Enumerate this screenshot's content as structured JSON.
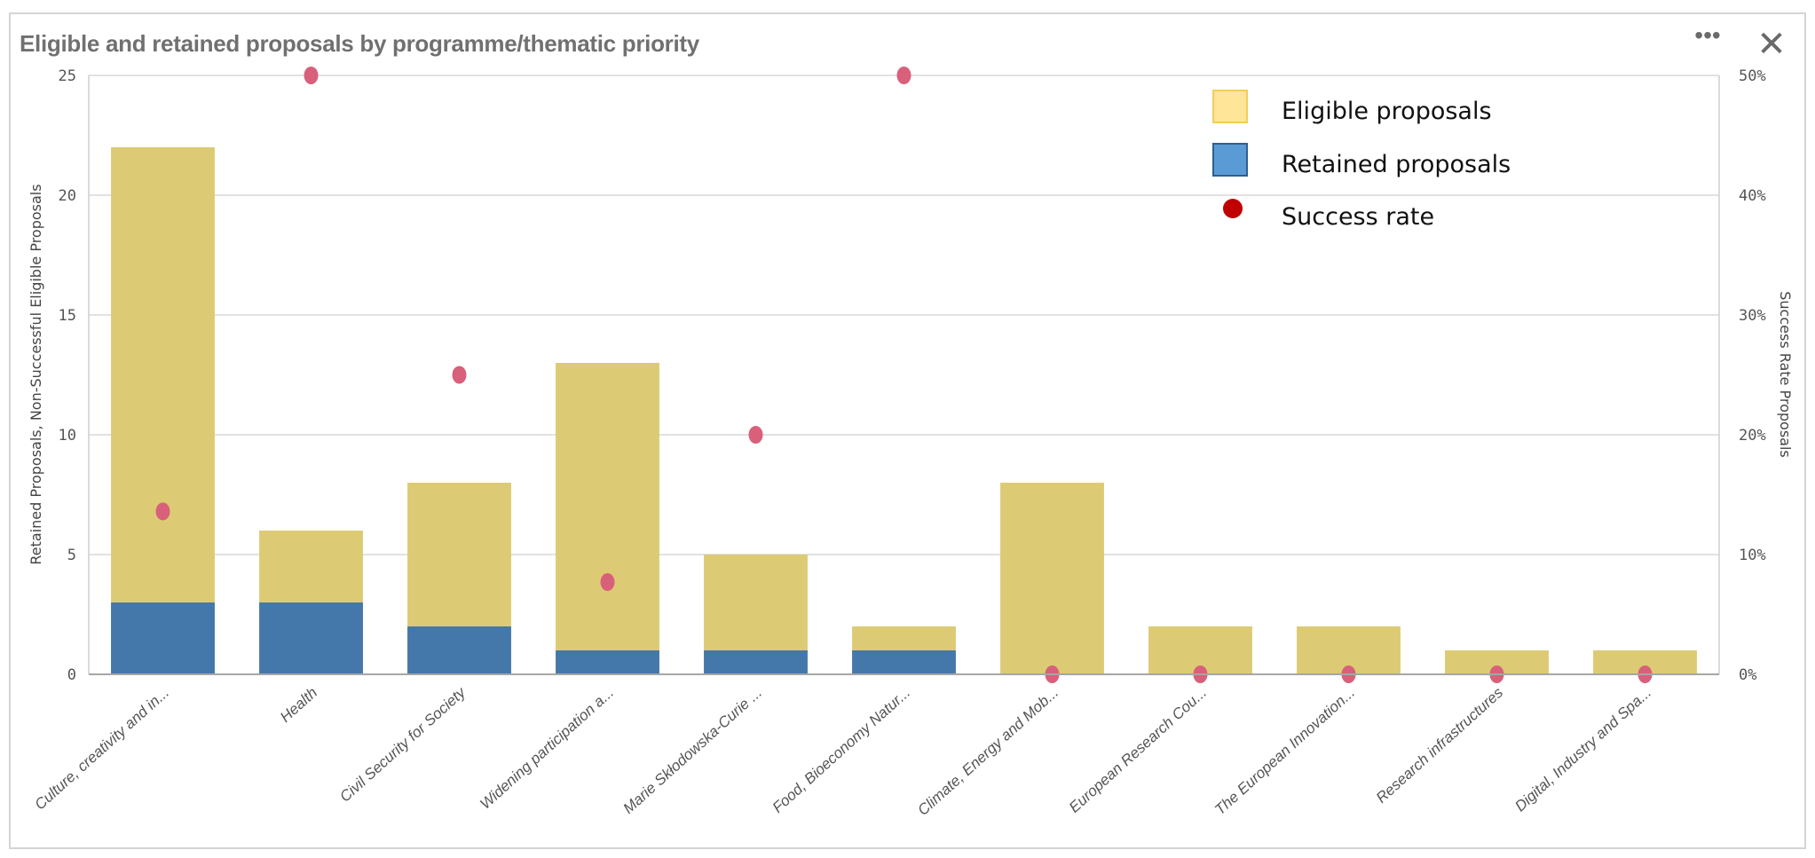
{
  "header": {
    "title": "Eligible and retained proposals by programme/thematic priority",
    "menu_icon": "more-horizontal-icon",
    "menu_label": "•••",
    "close_icon": "close-icon",
    "close_label": "✕"
  },
  "colors": {
    "eligible": "#dccb74",
    "retained": "#4578aa",
    "success": "#d9607a",
    "legend_eligible": "#fee598",
    "legend_retained": "#5b9bd5",
    "legend_success": "#c00000",
    "grid": "#d9d9d9"
  },
  "chart_data": {
    "type": "bar",
    "stacked": true,
    "categories": [
      "Culture, creativity and in...",
      "Health",
      "Civil Security for Society",
      "Widening participation a...",
      "Marie Skłodowska-Curie ...",
      "Food, Bioeconomy Natur...",
      "Climate, Energy and Mob...",
      "European Research Cou...",
      "The European Innovation...",
      "Research infrastructures",
      "Digital, Industry and Spa..."
    ],
    "series": [
      {
        "name": "Retained proposals",
        "values": [
          3,
          3,
          2,
          1,
          1,
          1,
          0,
          0,
          0,
          0,
          0
        ]
      },
      {
        "name": "Eligible proposals",
        "values": [
          19,
          3,
          6,
          12,
          4,
          1,
          8,
          2,
          2,
          1,
          1
        ]
      },
      {
        "name": "Success rate",
        "type": "scatter",
        "axis": "right",
        "values": [
          13.6,
          50,
          25,
          7.7,
          20,
          50,
          0,
          0,
          0,
          0,
          0
        ]
      }
    ],
    "ylabel": "Retained Proposals, Non-Successful Eligible Proposals",
    "y2label": "Success Rate Proposals",
    "ylim": [
      0,
      25
    ],
    "yticks": [
      "0",
      "5",
      "10",
      "15",
      "20",
      "25"
    ],
    "y2lim": [
      0,
      50
    ],
    "y2ticks": [
      "0%",
      "10%",
      "20%",
      "30%",
      "40%",
      "50%"
    ],
    "grid": true,
    "legend_position": "top-right",
    "legend": [
      {
        "label": "Eligible proposals",
        "icon": "square"
      },
      {
        "label": "Retained proposals",
        "icon": "square"
      },
      {
        "label": "Success rate",
        "icon": "circle"
      }
    ]
  }
}
